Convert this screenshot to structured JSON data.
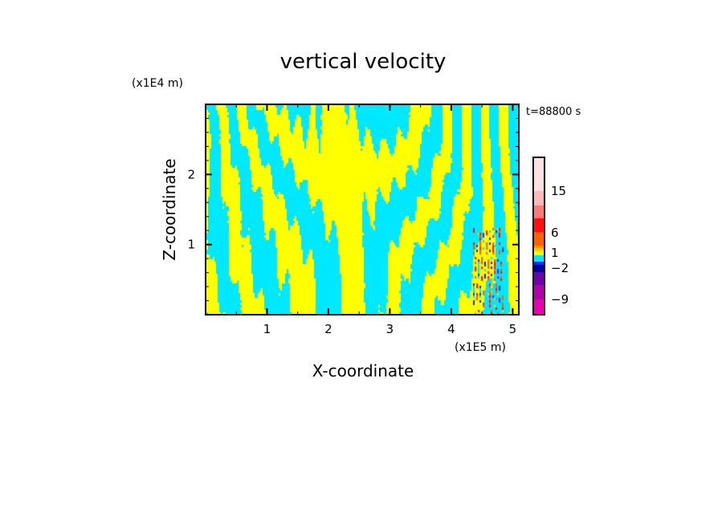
{
  "chart_data": {
    "type": "heatmap",
    "title": "vertical velocity",
    "xlabel": "X-coordinate",
    "ylabel": "Z-coordinate",
    "x_unit": "(x1E5 m)",
    "y_unit": "(x1E4 m)",
    "time_label": "t=88800 s",
    "xlim": [
      0,
      5.1
    ],
    "ylim": [
      0,
      3.0
    ],
    "x_ticks": [
      "1",
      "2",
      "3",
      "4",
      "5"
    ],
    "x_tick_values": [
      1,
      2,
      3,
      4,
      5
    ],
    "y_ticks": [
      "1",
      "2"
    ],
    "y_tick_values": [
      1,
      2
    ],
    "colorbar": {
      "labels": [
        "15",
        "6",
        "1",
        "−2",
        "−9"
      ],
      "label_values": [
        15,
        6,
        1,
        -2,
        -9
      ],
      "colors_bottom_to_top": [
        "#e800b0",
        "#b000a8",
        "#7000a8",
        "#0000a0",
        "#0030ff",
        "#00e8ff",
        "#ffff00",
        "#ffd000",
        "#ff9000",
        "#ff6000",
        "#ff1010",
        "#ff7878",
        "#ffb8b8",
        "#ffe0e0"
      ]
    },
    "field_description_colors": {
      "positive": "#ffff00",
      "negative": "#00e8ff"
    }
  }
}
